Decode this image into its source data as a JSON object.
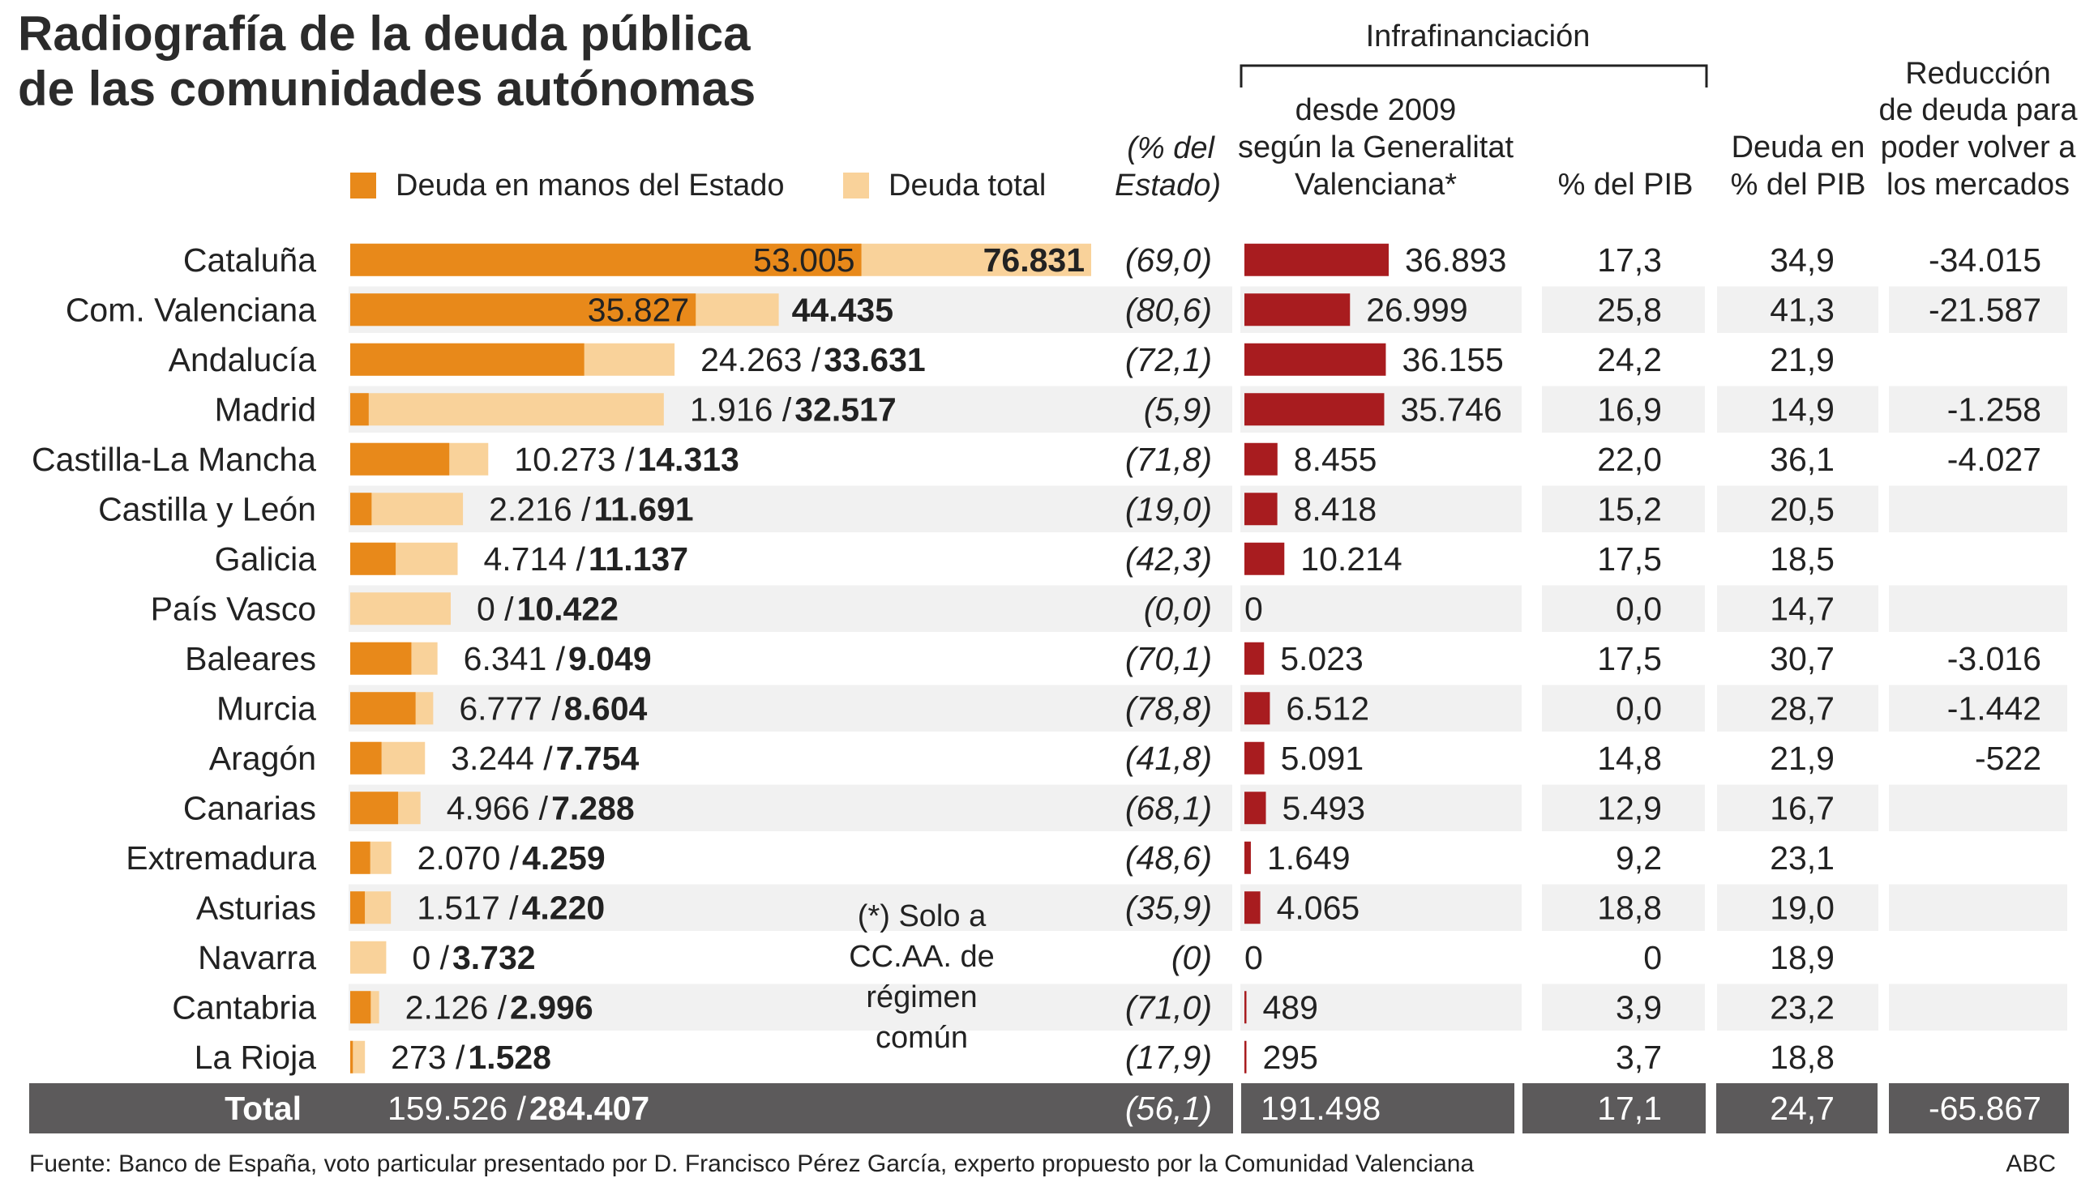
{
  "title_line1": "Radiografía de la deuda pública",
  "title_line2": "de las comunidades autónomas",
  "legend": {
    "estado": "Deuda en manos del Estado",
    "total": "Deuda total"
  },
  "headers": {
    "pct_estado_1": "(% del",
    "pct_estado_2": "Estado)",
    "infra_group": "Infrafinanciación",
    "infra_1": "desde 2009",
    "infra_2": "según la Generalitat",
    "infra_3": "Valenciana*",
    "infra_pib": "% del PIB",
    "deuda_pib_1": "Deuda en",
    "deuda_pib_2": "% del PIB",
    "reduccion_1": "Reducción",
    "reduccion_2": "de deuda para",
    "reduccion_3": "poder volver a",
    "reduccion_4": "los mercados"
  },
  "colors": {
    "estado": "#e8891a",
    "total": "#f9d29a",
    "infra": "#a81c1f",
    "row_alt": "#f1f1f1",
    "total_row": "#5c5a5b"
  },
  "chart_data": {
    "type": "table",
    "columns": [
      "Deuda en manos del Estado",
      "Deuda total",
      "% del Estado",
      "Infrafinanciación desde 2009",
      "% del PIB",
      "Deuda en % del PIB",
      "Reducción de deuda para poder volver a los mercados"
    ],
    "rows": [
      {
        "region": "Cataluña",
        "estado": 53005,
        "total": 76831,
        "estado_txt": "53.005",
        "total_txt": "76.831",
        "pct": "(69,0)",
        "infra": 36893,
        "infra_txt": "36.893",
        "infra_pib": "17,3",
        "deuda_pib": "34,9",
        "reduccion": "-34.015"
      },
      {
        "region": "Com. Valenciana",
        "estado": 35827,
        "total": 44435,
        "estado_txt": "35.827",
        "total_txt": "44.435",
        "pct": "(80,6)",
        "infra": 26999,
        "infra_txt": "26.999",
        "infra_pib": "25,8",
        "deuda_pib": "41,3",
        "reduccion": "-21.587"
      },
      {
        "region": "Andalucía",
        "estado": 24263,
        "total": 33631,
        "estado_txt": "24.263",
        "total_txt": "33.631",
        "pct": "(72,1)",
        "infra": 36155,
        "infra_txt": "36.155",
        "infra_pib": "24,2",
        "deuda_pib": "21,9",
        "reduccion": ""
      },
      {
        "region": "Madrid",
        "estado": 1916,
        "total": 32517,
        "estado_txt": "1.916",
        "total_txt": "32.517",
        "pct": "(5,9)",
        "infra": 35746,
        "infra_txt": "35.746",
        "infra_pib": "16,9",
        "deuda_pib": "14,9",
        "reduccion": "-1.258"
      },
      {
        "region": "Castilla-La Mancha",
        "estado": 10273,
        "total": 14313,
        "estado_txt": "10.273",
        "total_txt": "14.313",
        "pct": "(71,8)",
        "infra": 8455,
        "infra_txt": "8.455",
        "infra_pib": "22,0",
        "deuda_pib": "36,1",
        "reduccion": "-4.027"
      },
      {
        "region": "Castilla y León",
        "estado": 2216,
        "total": 11691,
        "estado_txt": "2.216",
        "total_txt": "11.691",
        "pct": "(19,0)",
        "infra": 8418,
        "infra_txt": "8.418",
        "infra_pib": "15,2",
        "deuda_pib": "20,5",
        "reduccion": ""
      },
      {
        "region": "Galicia",
        "estado": 4714,
        "total": 11137,
        "estado_txt": "4.714",
        "total_txt": "11.137",
        "pct": "(42,3)",
        "infra": 10214,
        "infra_txt": "10.214",
        "infra_pib": "17,5",
        "deuda_pib": "18,5",
        "reduccion": ""
      },
      {
        "region": "País Vasco",
        "estado": 0,
        "total": 10422,
        "estado_txt": "0",
        "total_txt": "10.422",
        "pct": "(0,0)",
        "infra": 0,
        "infra_txt": "0",
        "infra_pib": "0,0",
        "deuda_pib": "14,7",
        "reduccion": ""
      },
      {
        "region": "Baleares",
        "estado": 6341,
        "total": 9049,
        "estado_txt": "6.341",
        "total_txt": "9.049",
        "pct": "(70,1)",
        "infra": 5023,
        "infra_txt": "5.023",
        "infra_pib": "17,5",
        "deuda_pib": "30,7",
        "reduccion": "-3.016"
      },
      {
        "region": "Murcia",
        "estado": 6777,
        "total": 8604,
        "estado_txt": "6.777",
        "total_txt": "8.604",
        "pct": "(78,8)",
        "infra": 6512,
        "infra_txt": "6.512",
        "infra_pib": "0,0",
        "deuda_pib": "28,7",
        "reduccion": "-1.442"
      },
      {
        "region": "Aragón",
        "estado": 3244,
        "total": 7754,
        "estado_txt": "3.244",
        "total_txt": "7.754",
        "pct": "(41,8)",
        "infra": 5091,
        "infra_txt": "5.091",
        "infra_pib": "14,8",
        "deuda_pib": "21,9",
        "reduccion": "-522"
      },
      {
        "region": "Canarias",
        "estado": 4966,
        "total": 7288,
        "estado_txt": "4.966",
        "total_txt": "7.288",
        "pct": "(68,1)",
        "infra": 5493,
        "infra_txt": "5.493",
        "infra_pib": "12,9",
        "deuda_pib": "16,7",
        "reduccion": ""
      },
      {
        "region": "Extremadura",
        "estado": 2070,
        "total": 4259,
        "estado_txt": "2.070",
        "total_txt": "4.259",
        "pct": "(48,6)",
        "infra": 1649,
        "infra_txt": "1.649",
        "infra_pib": "9,2",
        "deuda_pib": "23,1",
        "reduccion": ""
      },
      {
        "region": "Asturias",
        "estado": 1517,
        "total": 4220,
        "estado_txt": "1.517",
        "total_txt": "4.220",
        "pct": "(35,9)",
        "infra": 4065,
        "infra_txt": "4.065",
        "infra_pib": "18,8",
        "deuda_pib": "19,0",
        "reduccion": ""
      },
      {
        "region": "Navarra",
        "estado": 0,
        "total": 3732,
        "estado_txt": "0",
        "total_txt": "3.732",
        "pct": "(0)",
        "infra": 0,
        "infra_txt": "0",
        "infra_pib": "0",
        "deuda_pib": "18,9",
        "reduccion": ""
      },
      {
        "region": "Cantabria",
        "estado": 2126,
        "total": 2996,
        "estado_txt": "2.126",
        "total_txt": "2.996",
        "pct": "(71,0)",
        "infra": 489,
        "infra_txt": "489",
        "infra_pib": "3,9",
        "deuda_pib": "23,2",
        "reduccion": ""
      },
      {
        "region": "La Rioja",
        "estado": 273,
        "total": 1528,
        "estado_txt": "273",
        "total_txt": "1.528",
        "pct": "(17,9)",
        "infra": 295,
        "infra_txt": "295",
        "infra_pib": "3,7",
        "deuda_pib": "18,8",
        "reduccion": ""
      }
    ],
    "total_row": {
      "label": "Total",
      "estado_txt": "159.526",
      "total_txt": "284.407",
      "pct": "(56,1)",
      "infra_txt": "191.498",
      "infra_pib": "17,1",
      "deuda_pib": "24,7",
      "reduccion": "-65.867"
    },
    "debt_scale_max": 76831,
    "infra_scale_max": 36893
  },
  "note": {
    "line1": "(*) Solo a",
    "line2": "CC.AA. de",
    "line3": "régimen",
    "line4": "común"
  },
  "source": "Fuente: Banco de España, voto particular presentado por D. Francisco Pérez García, experto propuesto por la Comunidad Valenciana",
  "credit": "ABC"
}
